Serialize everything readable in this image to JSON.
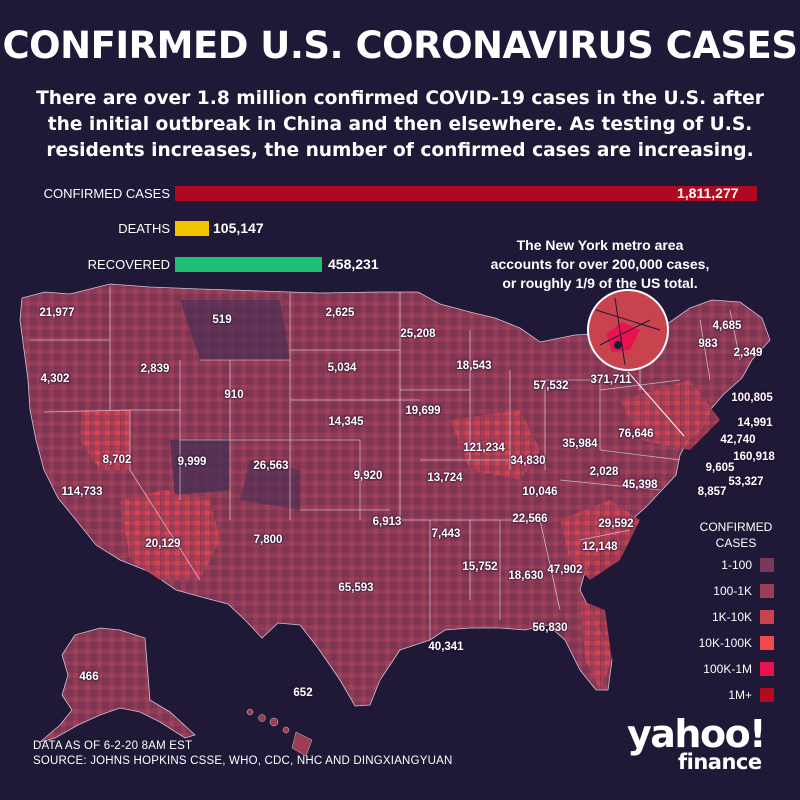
{
  "title": "CONFIRMED U.S. CORONAVIRUS CASES",
  "subtitle": "There are over 1.8 million confirmed COVID-19 cases in the U.S. after the initial outbreak in China and then elsewhere. As testing of U.S. residents increases, the number of confirmed cases are increasing.",
  "totals": {
    "confirmed": {
      "label": "CONFIRMED CASES",
      "value": 1811277,
      "display": "1,811,277",
      "color": "#b0081f"
    },
    "deaths": {
      "label": "DEATHS",
      "value": 105147,
      "display": "105,147",
      "color": "#f3c300"
    },
    "recovered": {
      "label": "RECOVERED",
      "value": 458231,
      "display": "458,231",
      "color": "#1fbf75"
    }
  },
  "callout": "The New York metro area accounts for over 200,000 cases, or roughly 1/9 of the US total.",
  "legend": {
    "title": "CONFIRMED CASES",
    "items": [
      {
        "label": "1-100",
        "color": "#7a3a57"
      },
      {
        "label": "100-1K",
        "color": "#9b3e55"
      },
      {
        "label": "1K-10K",
        "color": "#c9434f"
      },
      {
        "label": "10K-100K",
        "color": "#f0494c"
      },
      {
        "label": "100K-1M",
        "color": "#e8124f"
      },
      {
        "label": "1M+",
        "color": "#b20a20"
      }
    ]
  },
  "state_counts": [
    {
      "state": "Washington",
      "value": "21,977"
    },
    {
      "state": "Oregon",
      "value": "4,302"
    },
    {
      "state": "California",
      "value": "114,733"
    },
    {
      "state": "Nevada",
      "value": "8,702"
    },
    {
      "state": "Idaho",
      "value": "2,839"
    },
    {
      "state": "Montana",
      "value": "519"
    },
    {
      "state": "Wyoming",
      "value": "910"
    },
    {
      "state": "Utah",
      "value": "9,999"
    },
    {
      "state": "Arizona",
      "value": "20,129"
    },
    {
      "state": "Colorado",
      "value": "26,563"
    },
    {
      "state": "New Mexico",
      "value": "7,800"
    },
    {
      "state": "North Dakota",
      "value": "2,625"
    },
    {
      "state": "South Dakota",
      "value": "5,034"
    },
    {
      "state": "Nebraska",
      "value": "14,345"
    },
    {
      "state": "Kansas",
      "value": "9,920"
    },
    {
      "state": "Oklahoma",
      "value": "6,913"
    },
    {
      "state": "Texas",
      "value": "65,593"
    },
    {
      "state": "Minnesota",
      "value": "25,208"
    },
    {
      "state": "Iowa",
      "value": "19,699"
    },
    {
      "state": "Missouri",
      "value": "13,724"
    },
    {
      "state": "Arkansas",
      "value": "7,443"
    },
    {
      "state": "Louisiana",
      "value": "40,341"
    },
    {
      "state": "Wisconsin",
      "value": "18,543"
    },
    {
      "state": "Illinois",
      "value": "121,234"
    },
    {
      "state": "Michigan",
      "value": "57,532"
    },
    {
      "state": "Indiana",
      "value": "34,830"
    },
    {
      "state": "Ohio",
      "value": "35,984"
    },
    {
      "state": "Kentucky",
      "value": "10,046"
    },
    {
      "state": "Tennessee",
      "value": "22,566"
    },
    {
      "state": "Mississippi",
      "value": "15,752"
    },
    {
      "state": "Alabama",
      "value": "18,630"
    },
    {
      "state": "Georgia",
      "value": "47,902"
    },
    {
      "state": "Florida",
      "value": "56,830"
    },
    {
      "state": "South Carolina",
      "value": "12,148"
    },
    {
      "state": "North Carolina",
      "value": "29,592"
    },
    {
      "state": "Virginia",
      "value": "45,398"
    },
    {
      "state": "West Virginia",
      "value": "2,028"
    },
    {
      "state": "Pennsylvania",
      "value": "76,646"
    },
    {
      "state": "New York",
      "value": "371,711"
    },
    {
      "state": "Vermont",
      "value": "983"
    },
    {
      "state": "New Hampshire",
      "value": "4,685"
    },
    {
      "state": "Maine",
      "value": "2,349"
    },
    {
      "state": "Massachusetts",
      "value": "100,805"
    },
    {
      "state": "Rhode Island",
      "value": "14,991"
    },
    {
      "state": "Connecticut",
      "value": "42,740"
    },
    {
      "state": "New Jersey",
      "value": "160,918"
    },
    {
      "state": "Delaware",
      "value": "9,605"
    },
    {
      "state": "Maryland",
      "value": "53,327"
    },
    {
      "state": "DC",
      "value": "8,857"
    },
    {
      "state": "Alaska",
      "value": "466"
    },
    {
      "state": "Hawaii",
      "value": "652"
    }
  ],
  "footer": {
    "data_as_of": "DATA AS OF 6-2-20 8AM EST",
    "source": "SOURCE:  JOHNS HOPKINS CSSE, WHO, CDC, NHC AND DINGXIANGYUAN"
  },
  "logo": {
    "brand": "yahoo!",
    "sub": "finance"
  }
}
